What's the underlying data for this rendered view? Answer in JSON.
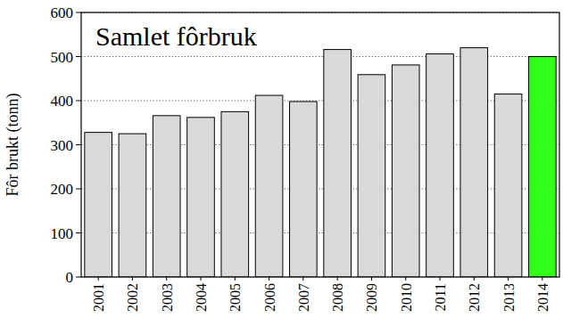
{
  "chart_data": {
    "type": "bar",
    "title": "Samlet fôrbruk",
    "y_label": "Fôr brukt (tonn)",
    "categories": [
      "2001",
      "2002",
      "2003",
      "2004",
      "2005",
      "2006",
      "2007",
      "2008",
      "2009",
      "2010",
      "2011",
      "2012",
      "2013",
      "2014"
    ],
    "values": [
      328,
      325,
      366,
      362,
      375,
      412,
      398,
      516,
      459,
      481,
      506,
      520,
      415,
      500
    ],
    "colors": [
      "#d9d9d9",
      "#d9d9d9",
      "#d9d9d9",
      "#d9d9d9",
      "#d9d9d9",
      "#d9d9d9",
      "#d9d9d9",
      "#d9d9d9",
      "#d9d9d9",
      "#d9d9d9",
      "#d9d9d9",
      "#d9d9d9",
      "#d9d9d9",
      "#33ff1a"
    ],
    "ylim": [
      0,
      600
    ],
    "yticks": [
      0,
      100,
      200,
      300,
      400,
      500,
      600
    ],
    "grid": true
  }
}
